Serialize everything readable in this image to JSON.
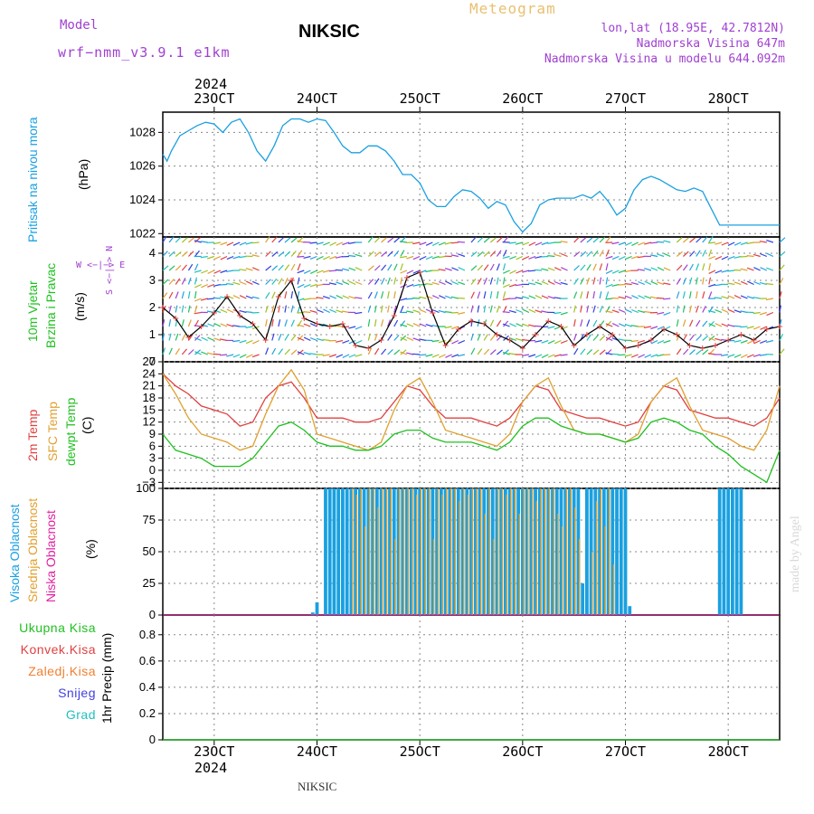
{
  "header": {
    "model_label": "Model",
    "model_name": "wrf−nmm_v3.9.1 e1km",
    "title": "NIKSIC",
    "meteogram": "Meteogram",
    "coords": "lon,lat (18.95E, 42.7812N)",
    "altitude": "Nadmorska Visina 647m",
    "model_altitude": "Nadmorska Visina u modelu 644.092m",
    "credit": "made by Angel",
    "footer": "NIKSIC"
  },
  "colors": {
    "pressure": "#1aa0e0",
    "temp2m": "#e04040",
    "sfc": "#e0a030",
    "dewpt": "#20c020",
    "high_cloud": "#1aa0e0",
    "mid_cloud": "#e0a030",
    "low_cloud": "#e020a0",
    "wind_speed": "#000000",
    "purple": "#a040d0"
  },
  "time_axis": {
    "top_year": "2024",
    "bottom_year": "2024",
    "days": [
      "23OCT",
      "24OCT",
      "25OCT",
      "26OCT",
      "27OCT",
      "28OCT"
    ]
  },
  "panels": {
    "pressure": {
      "label": "Pritisak na nivou mora",
      "unit": "(hPa)",
      "ticks": [
        "1022",
        "1024",
        "1026",
        "1028"
      ]
    },
    "wind": {
      "label1": "10m Vjetar",
      "label2": "Brzina i Pravac",
      "unit": "(m/s)",
      "ticks": [
        "0",
        "1",
        "2",
        "3",
        "4"
      ],
      "compass": "W <−|−> E",
      "compass_ns": "S <−|−> N"
    },
    "temp": {
      "label1": "2m Temp",
      "label2": "SFC Temp",
      "label3": "dewpt Temp",
      "unit": "(C)",
      "ticks": [
        "−3",
        "0",
        "3",
        "6",
        "9",
        "12",
        "15",
        "18",
        "21",
        "24",
        "27"
      ]
    },
    "cloud": {
      "label1": "Visoka Oblacnost",
      "label2": "Srednja Oblacnost",
      "label3": "Niska Oblacnost",
      "unit": "(%)",
      "ticks": [
        "0",
        "25",
        "50",
        "75",
        "100"
      ]
    },
    "precip": {
      "unit": "1hr Precip (mm)",
      "ticks": [
        "0",
        "0.2",
        "0.4",
        "0.6",
        "0.8"
      ],
      "legend": [
        "Ukupna Kisa",
        "Konvek.Kisa",
        "Zaledj.Kisa",
        "Snijeg",
        "Grad"
      ],
      "legend_colors": [
        "#20c020",
        "#e04040",
        "#f08030",
        "#4040e0",
        "#20c0c0"
      ]
    }
  },
  "chart_data": [
    {
      "type": "line",
      "title": "Pritisak na nivou mora",
      "ylabel": "(hPa)",
      "ylim": [
        1021.8,
        1029.2
      ],
      "xlim": [
        0,
        144
      ],
      "x": [
        0,
        1,
        2,
        4,
        6,
        8,
        10,
        12,
        14,
        16,
        18,
        20,
        22,
        24,
        26,
        28,
        30,
        32,
        34,
        36,
        38,
        40,
        42,
        44,
        46,
        48,
        50,
        52,
        54,
        56,
        58,
        60,
        62,
        64,
        66,
        68,
        70,
        72,
        74,
        76,
        78,
        80,
        82,
        84,
        86,
        88,
        90,
        92,
        94,
        96,
        98,
        100,
        102,
        104,
        106,
        108,
        110,
        112,
        114,
        116,
        118,
        120,
        122,
        124,
        126,
        128,
        130,
        132,
        134,
        136,
        138,
        140,
        142,
        144
      ],
      "series": [
        {
          "values": [
            1026.7,
            1026.3,
            1026.9,
            1027.8,
            1028.1,
            1028.4,
            1028.6,
            1028.5,
            1028.0,
            1028.6,
            1028.8,
            1028.0,
            1026.9,
            1026.3,
            1027.2,
            1028.4,
            1028.8,
            1028.8,
            1028.6,
            1028.8,
            1028.7,
            1028.0,
            1027.2,
            1026.8,
            1026.8,
            1027.2,
            1027.2,
            1026.9,
            1026.3,
            1025.5,
            1025.5,
            1025.0,
            1024.0,
            1023.6,
            1023.6,
            1024.2,
            1024.6,
            1024.5,
            1024.1,
            1023.5,
            1023.9,
            1023.7,
            1022.7,
            1022.1,
            1022.6,
            1023.7,
            1024.0,
            1024.1,
            1024.1,
            1024.1,
            1024.3,
            1024.1,
            1024.5,
            1023.9,
            1023.1,
            1023.5,
            1024.6,
            1025.2,
            1025.4,
            1025.2,
            1024.9,
            1024.6,
            1024.5,
            1024.7,
            1024.5,
            1023.5,
            1022.5,
            1022.5,
            1022.5,
            1022.5,
            1022.5,
            1022.5,
            1022.5,
            1022.5
          ]
        }
      ]
    },
    {
      "type": "line",
      "title": "10m Vjetar Brzina i Pravac",
      "ylabel": "(m/s)",
      "ylim": [
        0,
        4.6
      ],
      "xlim": [
        0,
        144
      ],
      "x": [
        0,
        3,
        6,
        9,
        12,
        15,
        18,
        21,
        24,
        27,
        30,
        33,
        36,
        39,
        42,
        45,
        48,
        51,
        54,
        57,
        60,
        63,
        66,
        69,
        72,
        75,
        78,
        81,
        84,
        87,
        90,
        93,
        96,
        99,
        102,
        105,
        108,
        111,
        114,
        117,
        120,
        123,
        126,
        129,
        132,
        135,
        138,
        141,
        144
      ],
      "series": [
        {
          "values": [
            2.0,
            1.6,
            0.9,
            1.3,
            1.8,
            2.4,
            1.7,
            1.4,
            0.8,
            2.4,
            3.0,
            1.6,
            1.4,
            1.3,
            1.4,
            0.6,
            0.5,
            0.8,
            1.7,
            3.1,
            3.3,
            1.8,
            0.6,
            1.2,
            1.5,
            1.4,
            1.0,
            0.8,
            0.5,
            1.0,
            1.5,
            1.3,
            0.6,
            1.0,
            1.3,
            1.0,
            0.5,
            0.6,
            0.8,
            1.2,
            1.0,
            0.6,
            0.5,
            0.6,
            0.8,
            1.0,
            0.8,
            1.2,
            1.3
          ]
        }
      ]
    },
    {
      "type": "line",
      "title": "2m Temp / SFC Temp / dewpt Temp",
      "ylabel": "(C)",
      "ylim": [
        -4.5,
        27
      ],
      "xlim": [
        0,
        144
      ],
      "x": [
        0,
        3,
        6,
        9,
        12,
        15,
        18,
        21,
        24,
        27,
        30,
        33,
        36,
        39,
        42,
        45,
        48,
        51,
        54,
        57,
        60,
        63,
        66,
        69,
        72,
        75,
        78,
        81,
        84,
        87,
        90,
        93,
        96,
        99,
        102,
        105,
        108,
        111,
        114,
        117,
        120,
        123,
        126,
        129,
        132,
        135,
        138,
        141,
        144
      ],
      "series": [
        {
          "name": "2m Temp",
          "values": [
            24,
            21,
            19,
            16,
            15,
            14,
            11,
            12,
            18,
            21,
            22,
            18,
            13,
            13,
            13,
            12,
            12,
            13,
            17,
            21,
            20,
            16,
            13,
            13,
            13,
            12,
            11,
            13,
            17,
            21,
            20,
            15,
            14,
            13,
            13,
            12,
            11,
            12,
            17,
            21,
            20,
            15,
            14,
            13,
            13,
            12,
            11,
            13,
            18
          ]
        },
        {
          "name": "SFC Temp",
          "values": [
            24,
            19,
            13,
            9,
            8,
            7,
            5,
            6,
            14,
            21,
            25,
            20,
            9,
            8,
            7,
            6,
            5,
            7,
            15,
            21,
            23,
            17,
            10,
            9,
            8,
            7,
            6,
            9,
            17,
            21,
            23,
            16,
            10,
            9,
            9,
            8,
            7,
            9,
            17,
            21,
            23,
            16,
            10,
            9,
            8,
            6,
            5,
            10,
            21
          ]
        },
        {
          "name": "dewpt Temp",
          "values": [
            9,
            5,
            4,
            3,
            1,
            1,
            1,
            3,
            7,
            11,
            12,
            10,
            7,
            6,
            6,
            5,
            5,
            6,
            9,
            10,
            10,
            8,
            7,
            7,
            7,
            6,
            5,
            7,
            11,
            13,
            13,
            11,
            10,
            9,
            9,
            8,
            7,
            8,
            12,
            13,
            12,
            10,
            9,
            6,
            4,
            1,
            -1,
            -3,
            5
          ]
        }
      ]
    },
    {
      "type": "bar",
      "title": "Visoka / Srednja / Niska Oblacnost",
      "ylabel": "(%)",
      "ylim": [
        0,
        100
      ],
      "xlim": [
        0,
        144
      ],
      "x": [
        35,
        36,
        38,
        39,
        40,
        41,
        42,
        43,
        44,
        45,
        46,
        47,
        48,
        49,
        50,
        51,
        52,
        53,
        54,
        55,
        56,
        57,
        58,
        59,
        60,
        61,
        62,
        63,
        64,
        65,
        66,
        67,
        68,
        69,
        70,
        71,
        72,
        73,
        74,
        75,
        76,
        77,
        78,
        79,
        80,
        81,
        82,
        83,
        84,
        85,
        86,
        87,
        88,
        89,
        90,
        91,
        92,
        93,
        94,
        95,
        96,
        97,
        98,
        99,
        100,
        101,
        102,
        103,
        104,
        105,
        106,
        107,
        108,
        109,
        110,
        111,
        112,
        113,
        114,
        115,
        116,
        117,
        118,
        119,
        120,
        121,
        122,
        123,
        124,
        125,
        126,
        127,
        128,
        129,
        130,
        131,
        132,
        133,
        134,
        135
      ],
      "series": [
        {
          "name": "Visoka Oblacnost",
          "values": [
            2,
            10,
            100,
            100,
            100,
            100,
            100,
            100,
            100,
            100,
            100,
            100,
            100,
            100,
            100,
            100,
            100,
            100,
            100,
            100,
            100,
            100,
            100,
            100,
            100,
            100,
            100,
            100,
            100,
            100,
            100,
            100,
            100,
            100,
            100,
            100,
            100,
            100,
            100,
            100,
            100,
            100,
            100,
            100,
            100,
            100,
            100,
            100,
            100,
            100,
            100,
            100,
            100,
            100,
            100,
            100,
            100,
            100,
            100,
            100,
            100,
            100,
            25,
            100,
            100,
            100,
            100,
            100,
            100,
            100,
            100,
            100,
            100,
            7,
            0,
            0,
            0,
            0,
            0,
            0,
            0,
            0,
            0,
            0,
            0,
            0,
            0,
            0,
            0,
            0,
            0,
            0,
            0,
            0,
            100,
            100,
            100,
            100,
            100,
            100
          ]
        },
        {
          "name": "Srednja Oblacnost",
          "values": [
            0,
            0,
            0,
            0,
            0,
            0,
            0,
            0,
            100,
            95,
            100,
            70,
            100,
            100,
            85,
            100,
            100,
            100,
            60,
            100,
            100,
            100,
            100,
            95,
            100,
            100,
            100,
            60,
            100,
            95,
            100,
            100,
            100,
            90,
            100,
            95,
            100,
            100,
            100,
            80,
            100,
            60,
            100,
            100,
            95,
            100,
            100,
            80,
            100,
            100,
            100,
            90,
            100,
            100,
            100,
            100,
            80,
            70,
            100,
            100,
            85,
            60,
            0,
            0,
            50,
            90,
            100,
            70,
            100,
            40,
            0,
            0,
            0,
            0,
            0,
            0,
            0,
            0,
            0,
            0,
            0,
            0,
            0,
            0,
            0,
            0,
            0,
            0,
            0,
            0,
            0,
            0,
            0,
            0,
            0,
            0,
            0,
            0,
            0,
            0
          ]
        }
      ]
    },
    {
      "type": "line",
      "title": "1hr Precip",
      "ylabel": "1hr Precip (mm)",
      "ylim": [
        0,
        0.95
      ],
      "xlim": [
        0,
        144
      ],
      "x": [
        0,
        144
      ],
      "series": [
        {
          "name": "Ukupna Kisa",
          "values": [
            0,
            0
          ]
        }
      ]
    }
  ]
}
